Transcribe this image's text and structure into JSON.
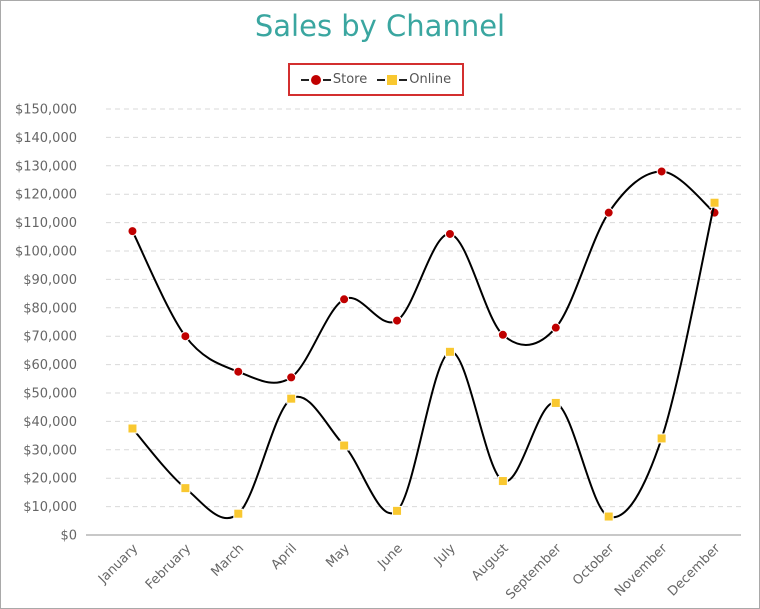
{
  "chart_data": {
    "type": "line",
    "title": "Sales by Channel",
    "categories": [
      "January",
      "February",
      "March",
      "April",
      "May",
      "June",
      "July",
      "August",
      "September",
      "October",
      "November",
      "December"
    ],
    "y_ticks": [
      "$0",
      "$10,000",
      "$20,000",
      "$30,000",
      "$40,000",
      "$50,000",
      "$60,000",
      "$70,000",
      "$80,000",
      "$90,000",
      "$100,000",
      "$110,000",
      "$120,000",
      "$130,000",
      "$140,000",
      "$150,000"
    ],
    "ylim": [
      0,
      150000
    ],
    "grid": true,
    "legend_position": "top-center",
    "series": [
      {
        "name": "Store",
        "marker": "circle",
        "color": "#c00000",
        "values": [
          107000,
          70000,
          57500,
          55500,
          83000,
          75500,
          106000,
          70500,
          73000,
          113500,
          128000,
          113500
        ]
      },
      {
        "name": "Online",
        "marker": "square",
        "color": "#f9c830",
        "values": [
          37500,
          16500,
          7500,
          48000,
          31500,
          8500,
          64500,
          19000,
          46500,
          6500,
          34000,
          117000
        ]
      }
    ]
  }
}
